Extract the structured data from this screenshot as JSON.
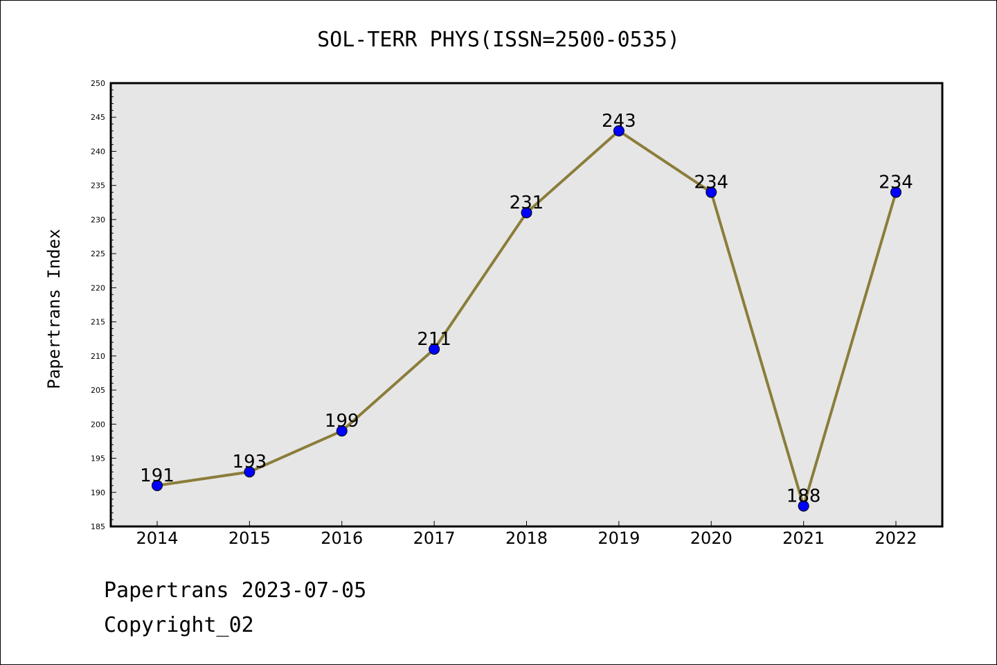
{
  "chart_data": {
    "type": "line",
    "title": "SOL-TERR PHYS(ISSN=2500-0535)",
    "xlabel": "",
    "ylabel": "Papertrans Index",
    "categories": [
      "2014",
      "2015",
      "2016",
      "2017",
      "2018",
      "2019",
      "2020",
      "2021",
      "2022"
    ],
    "series": [
      {
        "values": [
          191,
          193,
          199,
          211,
          231,
          243,
          234,
          188,
          234
        ]
      }
    ],
    "data_labels": [
      "191",
      "193",
      "199",
      "211",
      "231",
      "243",
      "234",
      "188",
      "234"
    ],
    "ylim": [
      185,
      250
    ],
    "yticks": [
      "185",
      "190",
      "195",
      "200",
      "205",
      "210",
      "215",
      "220",
      "225",
      "230",
      "235",
      "240",
      "245",
      "250"
    ],
    "grid": false,
    "legend": "none",
    "colors": {
      "line": "#8b7d3a",
      "marker": "#0000ff",
      "plot_background": "#e6e6e6"
    }
  },
  "footer": {
    "line1": "Papertrans 2023-07-05",
    "line2": "Copyright_02"
  }
}
